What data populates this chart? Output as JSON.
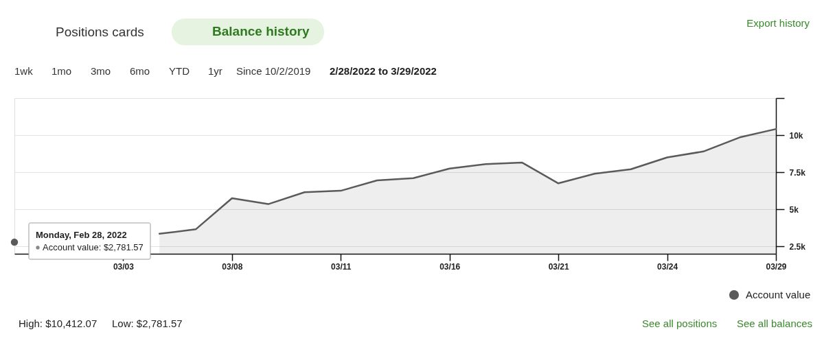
{
  "chart_data": {
    "type": "area",
    "title": "Balance history",
    "subtitle": "2/28/2022 to 3/29/2022",
    "categories": [
      null,
      null,
      null,
      "03/03",
      null,
      null,
      "03/08",
      null,
      null,
      "03/11",
      null,
      null,
      "03/16",
      null,
      null,
      "03/21",
      null,
      null,
      "03/24",
      null,
      null,
      "03/29"
    ],
    "series": [
      {
        "name": "Account value",
        "color": "#5a5a5a",
        "values": [
          2781.57,
          null,
          null,
          null,
          3350,
          3650,
          5750,
          5350,
          6150,
          6250,
          6950,
          7100,
          7750,
          8050,
          8150,
          6750,
          7400,
          7700,
          8500,
          8900,
          9850,
          10412.07
        ]
      }
    ],
    "ylim": [
      2000,
      12500
    ],
    "yticks": [
      {
        "value": 2500,
        "label": "2.5k"
      },
      {
        "value": 5000,
        "label": "5k"
      },
      {
        "value": 7500,
        "label": "7.5k"
      },
      {
        "value": 10000,
        "label": "10k"
      },
      {
        "value": 12500,
        "label": null
      }
    ],
    "grid": "y",
    "legend": "bottom right",
    "annotations": [
      "Positions cards",
      "Export history",
      "1wk",
      "1mo",
      "3mo",
      "6mo",
      "YTD",
      "1yr",
      "Since 10/2/2019",
      "Monday, Feb 28, 2022",
      "Account value: $2,781.57",
      "High: $10,412.07",
      "Low: $2,781.57",
      "See all positions",
      "See all balances"
    ]
  }
}
